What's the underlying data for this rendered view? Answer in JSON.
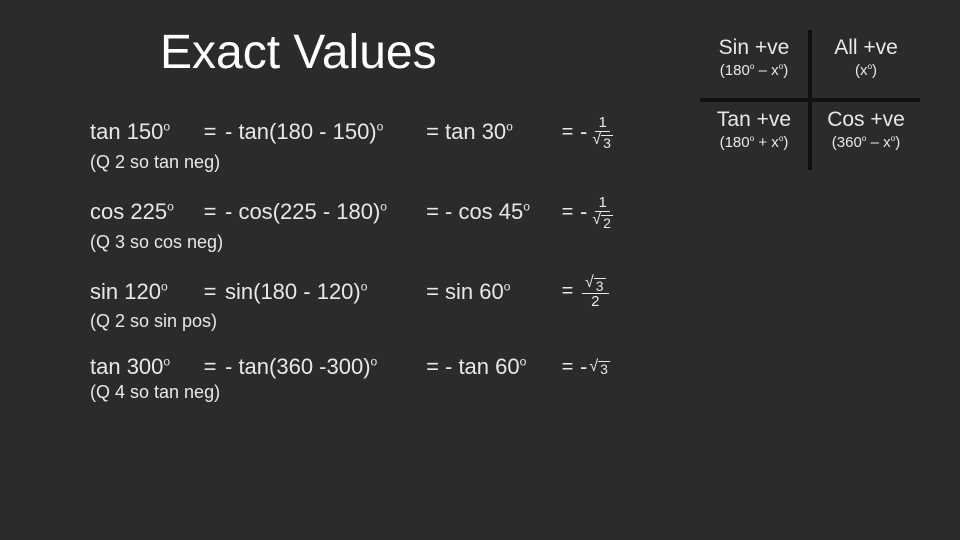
{
  "title": "Exact Values",
  "rows": [
    {
      "lhs": "tan 150",
      "lhs_sup": "o",
      "mid_pre": "- tan(180 - 150)",
      "mid_sup": "o",
      "rhs": "tan 30",
      "rhs_sup": "o",
      "frac_neg": "-",
      "frac_num": "1",
      "frac_den_sqrt": "3",
      "note": "(Q 2 so tan neg)"
    },
    {
      "lhs": "cos 225",
      "lhs_sup": "o",
      "mid_pre": "- cos(225 - 180)",
      "mid_sup": "o",
      "rhs": "- cos 45",
      "rhs_sup": "o",
      "frac_neg": "-",
      "frac_num": "1",
      "frac_den_sqrt": "2",
      "note": "(Q 3 so cos neg)"
    },
    {
      "lhs": "sin 120",
      "lhs_sup": "o",
      "mid_pre": "sin(180 - 120)",
      "mid_sup": "o",
      "rhs": "sin 60",
      "rhs_sup": "o",
      "frac_neg": "",
      "frac_num_sqrt": "3",
      "frac_den": "2",
      "note": "(Q 2 so sin pos)"
    },
    {
      "lhs": "tan 300",
      "lhs_sup": "o",
      "mid_pre": "- tan(360 -300)",
      "mid_sup": "o",
      "rhs": "- tan 60",
      "rhs_sup": "o",
      "frac_neg": "-",
      "plain_sqrt": "3",
      "note": "(Q 4 so tan neg)"
    }
  ],
  "astc": {
    "q2_big": "Sin +ve",
    "q2_small_pre": "(180",
    "q2_small_sup": "o",
    "q2_small_post": " – x",
    "q2_small_sup2": "o",
    "q2_small_end": ")",
    "q1_big": "All +ve",
    "q1_small_pre": "(x",
    "q1_small_sup": "o",
    "q1_small_end": ")",
    "q3_big": "Tan +ve",
    "q3_small_pre": "(180",
    "q3_small_sup": "o",
    "q3_small_post": " + x",
    "q3_small_sup2": "o",
    "q3_small_end": ")",
    "q4_big": "Cos +ve",
    "q4_small_pre": "(360",
    "q4_small_sup": "o",
    "q4_small_post": " – x",
    "q4_small_sup2": "o",
    "q4_small_end": ")"
  },
  "colors": {
    "bg": "#2b2b2b",
    "text": "#e8e8e8",
    "axis": "#111111"
  }
}
